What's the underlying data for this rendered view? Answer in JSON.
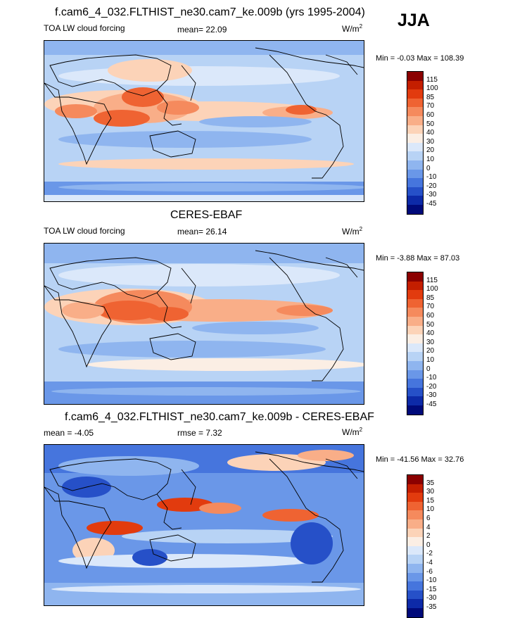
{
  "season": "JJA",
  "units_base": "W/m",
  "units_sup": "2",
  "panels": [
    {
      "title": "f.cam6_4_032.FLTHIST_ne30.cam7_ke.009b (yrs 1995-2004)",
      "left_label": "TOA LW cloud forcing",
      "center_label": "mean=  22.09",
      "minmax": "Min =  -0.03 Max = 108.39",
      "levels": [
        "115",
        "100",
        "85",
        "70",
        "60",
        "50",
        "40",
        "30",
        "20",
        "10",
        "0",
        "-10",
        "-20",
        "-30",
        "-45"
      ],
      "colors": [
        "#8b0000",
        "#c41e00",
        "#e23b0e",
        "#ef6332",
        "#f58a5d",
        "#f9ae88",
        "#fcd3b8",
        "#fbeee4",
        "#dbe8fa",
        "#b8d3f5",
        "#8fb5ef",
        "#6a97e8",
        "#4675dd",
        "#2650c8",
        "#0d2aa8",
        "#000a7a"
      ]
    },
    {
      "title": "CERES-EBAF",
      "left_label": "TOA LW cloud forcing",
      "center_label": "mean=  26.14",
      "minmax": "Min =  -3.88 Max =  87.03",
      "levels": [
        "115",
        "100",
        "85",
        "70",
        "60",
        "50",
        "40",
        "30",
        "20",
        "10",
        "0",
        "-10",
        "-20",
        "-30",
        "-45"
      ],
      "colors": [
        "#8b0000",
        "#c41e00",
        "#e23b0e",
        "#ef6332",
        "#f58a5d",
        "#f9ae88",
        "#fcd3b8",
        "#fbeee4",
        "#dbe8fa",
        "#b8d3f5",
        "#8fb5ef",
        "#6a97e8",
        "#4675dd",
        "#2650c8",
        "#0d2aa8",
        "#000a7a"
      ]
    },
    {
      "title": "f.cam6_4_032.FLTHIST_ne30.cam7_ke.009b - CERES-EBAF",
      "left_label": "mean =  -4.05",
      "center_label": "rmse =   7.32",
      "minmax": "Min = -41.56 Max =  32.76",
      "levels": [
        "35",
        "30",
        "15",
        "10",
        "6",
        "4",
        "2",
        "0",
        "-2",
        "-4",
        "-6",
        "-10",
        "-15",
        "-30",
        "-35"
      ],
      "colors": [
        "#8b0000",
        "#c41e00",
        "#e23b0e",
        "#ef6332",
        "#f58a5d",
        "#f9ae88",
        "#fcd3b8",
        "#fbeee4",
        "#dbe8fa",
        "#b8d3f5",
        "#8fb5ef",
        "#6a97e8",
        "#4675dd",
        "#2650c8",
        "#0d2aa8",
        "#000a7a"
      ]
    }
  ]
}
